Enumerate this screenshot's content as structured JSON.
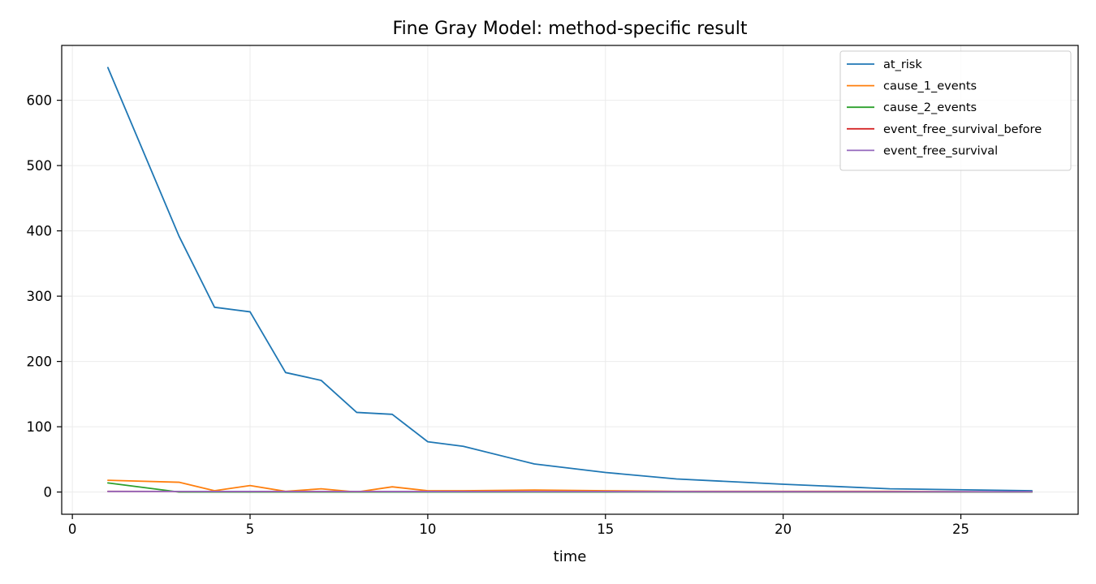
{
  "chart_data": {
    "type": "line",
    "title": "Fine Gray Model: method-specific result",
    "xlabel": "time",
    "ylabel": "",
    "xlim": [
      -0.3,
      28.3
    ],
    "ylim": [
      -34,
      684
    ],
    "xticks": [
      0,
      5,
      10,
      15,
      20,
      25
    ],
    "yticks": [
      0,
      100,
      200,
      300,
      400,
      500,
      600
    ],
    "grid": true,
    "legend_position": "top-right",
    "series": [
      {
        "name": "at_risk",
        "color": "#1f77b4",
        "x": [
          1,
          3,
          4,
          5,
          6,
          7,
          8,
          9,
          10,
          11,
          13,
          15,
          17,
          20,
          23,
          27
        ],
        "y": [
          650,
          392,
          283,
          276,
          183,
          171,
          122,
          119,
          77,
          70,
          43,
          30,
          20,
          12,
          5,
          2
        ]
      },
      {
        "name": "cause_1_events",
        "color": "#ff7f0e",
        "x": [
          1,
          3,
          4,
          5,
          6,
          7,
          8,
          9,
          10,
          11,
          13,
          15,
          17,
          20,
          23,
          27
        ],
        "y": [
          18,
          15,
          2,
          10,
          1,
          5,
          0,
          8,
          2,
          2,
          3,
          2,
          1,
          1,
          1,
          0
        ]
      },
      {
        "name": "cause_2_events",
        "color": "#2ca02c",
        "x": [
          1,
          3,
          4,
          5,
          6,
          7,
          8,
          9,
          10,
          11,
          13,
          15,
          17,
          20,
          23,
          27
        ],
        "y": [
          14,
          0,
          0,
          0,
          0,
          0,
          0,
          0,
          0,
          0,
          0,
          0,
          0,
          0,
          0,
          0
        ]
      },
      {
        "name": "event_free_survival_before",
        "color": "#d62728",
        "x": [
          1,
          3,
          4,
          5,
          6,
          7,
          8,
          9,
          10,
          11,
          13,
          15,
          17,
          20,
          23,
          27
        ],
        "y": [
          1,
          0.95,
          0.9,
          0.86,
          0.83,
          0.8,
          0.78,
          0.75,
          0.72,
          0.7,
          0.66,
          0.62,
          0.58,
          0.55,
          0.52,
          0.5
        ]
      },
      {
        "name": "event_free_survival",
        "color": "#9467bd",
        "x": [
          1,
          3,
          4,
          5,
          6,
          7,
          8,
          9,
          10,
          11,
          13,
          15,
          17,
          20,
          23,
          27
        ],
        "y": [
          0.95,
          0.9,
          0.86,
          0.83,
          0.8,
          0.78,
          0.75,
          0.72,
          0.7,
          0.66,
          0.62,
          0.58,
          0.55,
          0.52,
          0.5,
          0.48
        ]
      }
    ]
  }
}
